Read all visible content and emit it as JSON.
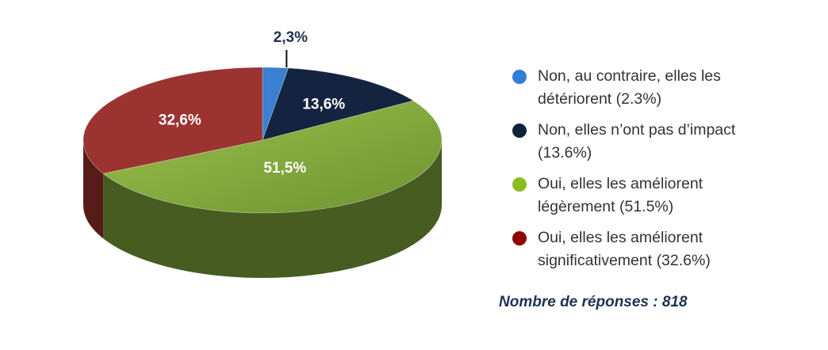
{
  "chart_data": {
    "type": "pie",
    "categories": [
      "Non, au contraire, elles les détériorent (2.3%)",
      "Non, elles n’ont pas d’impact (13.6%)",
      "Oui, elles les améliorent légèrement (51.5%)",
      "Oui, elles les améliorent significativement (32.6%)"
    ],
    "values": [
      2.3,
      13.6,
      51.5,
      32.6
    ],
    "data_labels": [
      "2,3%",
      "13,6%",
      "51,5%",
      "32,6%"
    ],
    "colors": [
      "#3a7fd0",
      "#14233f",
      "#7fa73a",
      "#9b3330"
    ],
    "legend_placement": "right",
    "style": "3d"
  },
  "legend": {
    "items": [
      {
        "label": "Non, au contraire, elles les détériorent (2.3%)",
        "color": "#2f7ed8"
      },
      {
        "label": "Non, elles n’ont pas d’impact (13.6%)",
        "color": "#0d233a"
      },
      {
        "label": "Oui, elles les améliorent légèrement (51.5%)",
        "color": "#8bbc21"
      },
      {
        "label": "Oui, elles les améliorent significativement (32.6%)",
        "color": "#910000"
      }
    ]
  },
  "footnote": "Nombre de réponses : 818"
}
